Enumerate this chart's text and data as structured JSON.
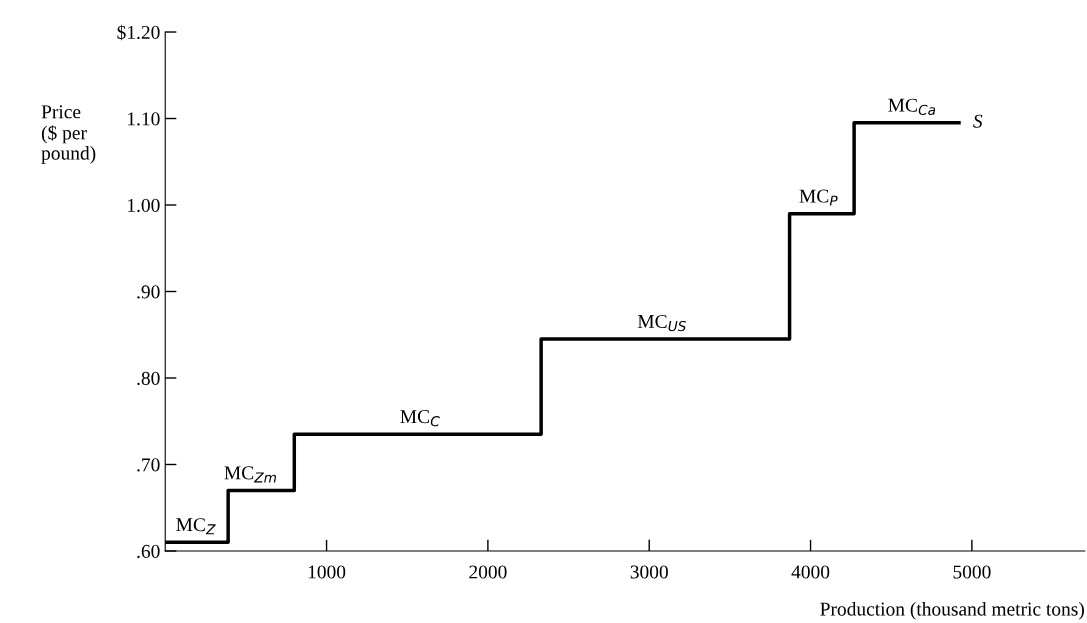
{
  "chart_data": {
    "type": "step",
    "xlabel": "Production (thousand metric tons)",
    "ylabel": "Price\n($ per\npound)",
    "series": [
      {
        "name": "S",
        "color": "#000000",
        "x": [
          0,
          390,
          800,
          2330,
          3870,
          4270,
          4920
        ],
        "values": [
          0.61,
          0.67,
          0.735,
          0.845,
          0.99,
          1.095,
          1.095
        ]
      }
    ],
    "xlim": [
      0,
      5700
    ],
    "xticks": [
      1000,
      2000,
      3000,
      4000,
      5000
    ],
    "ylim": [
      0.6,
      1.2
    ],
    "yticks": [
      {
        "value": 0.6,
        "label": ".60"
      },
      {
        "value": 0.7,
        "label": ".70"
      },
      {
        "value": 0.8,
        "label": ".80"
      },
      {
        "value": 0.9,
        "label": ".90"
      },
      {
        "value": 1.0,
        "label": "1.00"
      },
      {
        "value": 1.1,
        "label": "1.10"
      },
      {
        "value": 1.2,
        "label": "$1.20"
      }
    ],
    "annotations": [
      {
        "text": "MC$_{Z}$",
        "x": 190,
        "y": 0.61
      },
      {
        "text": "MC$_{Zm}$",
        "x": 530,
        "y": 0.67
      },
      {
        "text": "MC$_{C}$",
        "x": 1580,
        "y": 0.735
      },
      {
        "text": "MC$_{US}$",
        "x": 3080,
        "y": 0.845
      },
      {
        "text": "MC$_{P}$",
        "x": 4050,
        "y": 0.99
      },
      {
        "text": "MC$_{Ca}$",
        "x": 4630,
        "y": 1.095
      }
    ],
    "grid": false,
    "legend": false
  }
}
